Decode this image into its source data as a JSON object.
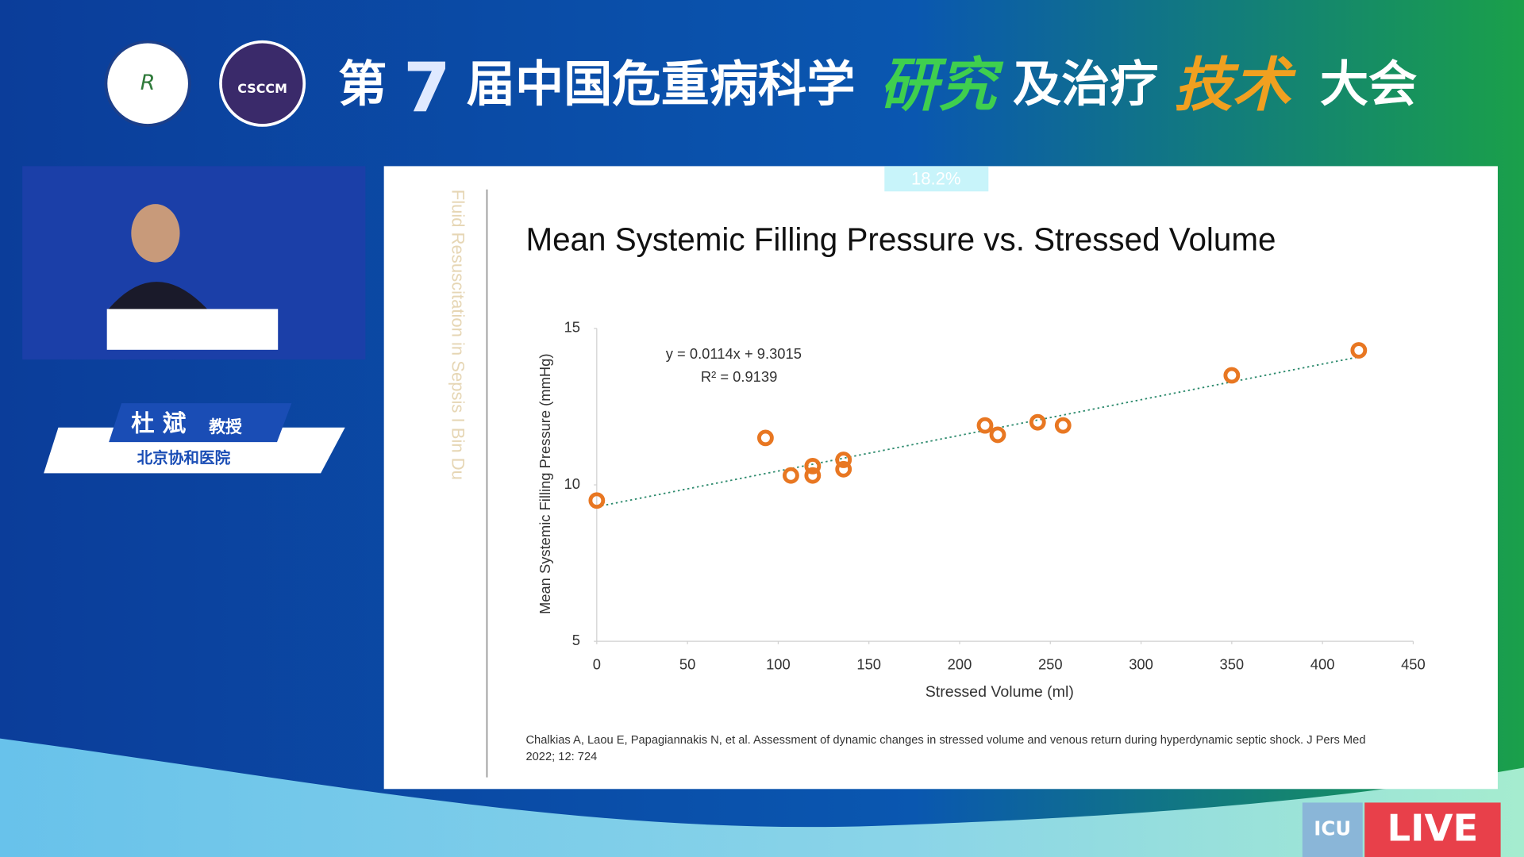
{
  "banner": {
    "title_parts": [
      "第",
      "7",
      "届中国危重病科学",
      "研究",
      "及治疗",
      "技术",
      "大会"
    ],
    "logo_right": "CSCCM"
  },
  "speaker": {
    "name": "杜 斌",
    "title": "教授",
    "affiliation": "北京协和医院"
  },
  "slide": {
    "side_title": "Fluid Resuscitation in Sepsis I Bin Du",
    "badge": "18.2%",
    "citation": [
      "Chalkias A, Laou E, Papagiannakis N, et al. Assessment of dynamic changes in stressed volume and venous return during hyperdynamic septic shock. J Pers Med",
      "2022; 12: 724"
    ]
  },
  "overlay": {
    "icu": "ICU",
    "live": "LIVE"
  },
  "chart_data": {
    "type": "scatter",
    "title": "Mean Systemic Filling Pressure vs. Stressed Volume",
    "x_label": "Stressed Volume (ml)",
    "y_label": "Mean Systemic Filling Pressure (mmHg)",
    "x": [
      0,
      93,
      107,
      119,
      119,
      136,
      136,
      214,
      221,
      243,
      257,
      350,
      420
    ],
    "values": [
      9.5,
      11.5,
      10.3,
      10.6,
      10.3,
      10.8,
      10.5,
      11.9,
      11.6,
      12.0,
      11.9,
      13.5,
      14.3
    ],
    "color": "#e87722",
    "xlim": [
      0,
      450
    ],
    "xticks": [
      0,
      50,
      100,
      150,
      200,
      250,
      300,
      350,
      400,
      450
    ],
    "ylim": [
      5,
      15
    ],
    "yticks": [
      5,
      10,
      15
    ],
    "trendline": {
      "slope": 0.0114,
      "intercept": 9.3015,
      "color": "#2e8b6e"
    },
    "annotations": [
      "y = 0.0114x + 9.3015",
      "R² = 0.9139"
    ]
  }
}
